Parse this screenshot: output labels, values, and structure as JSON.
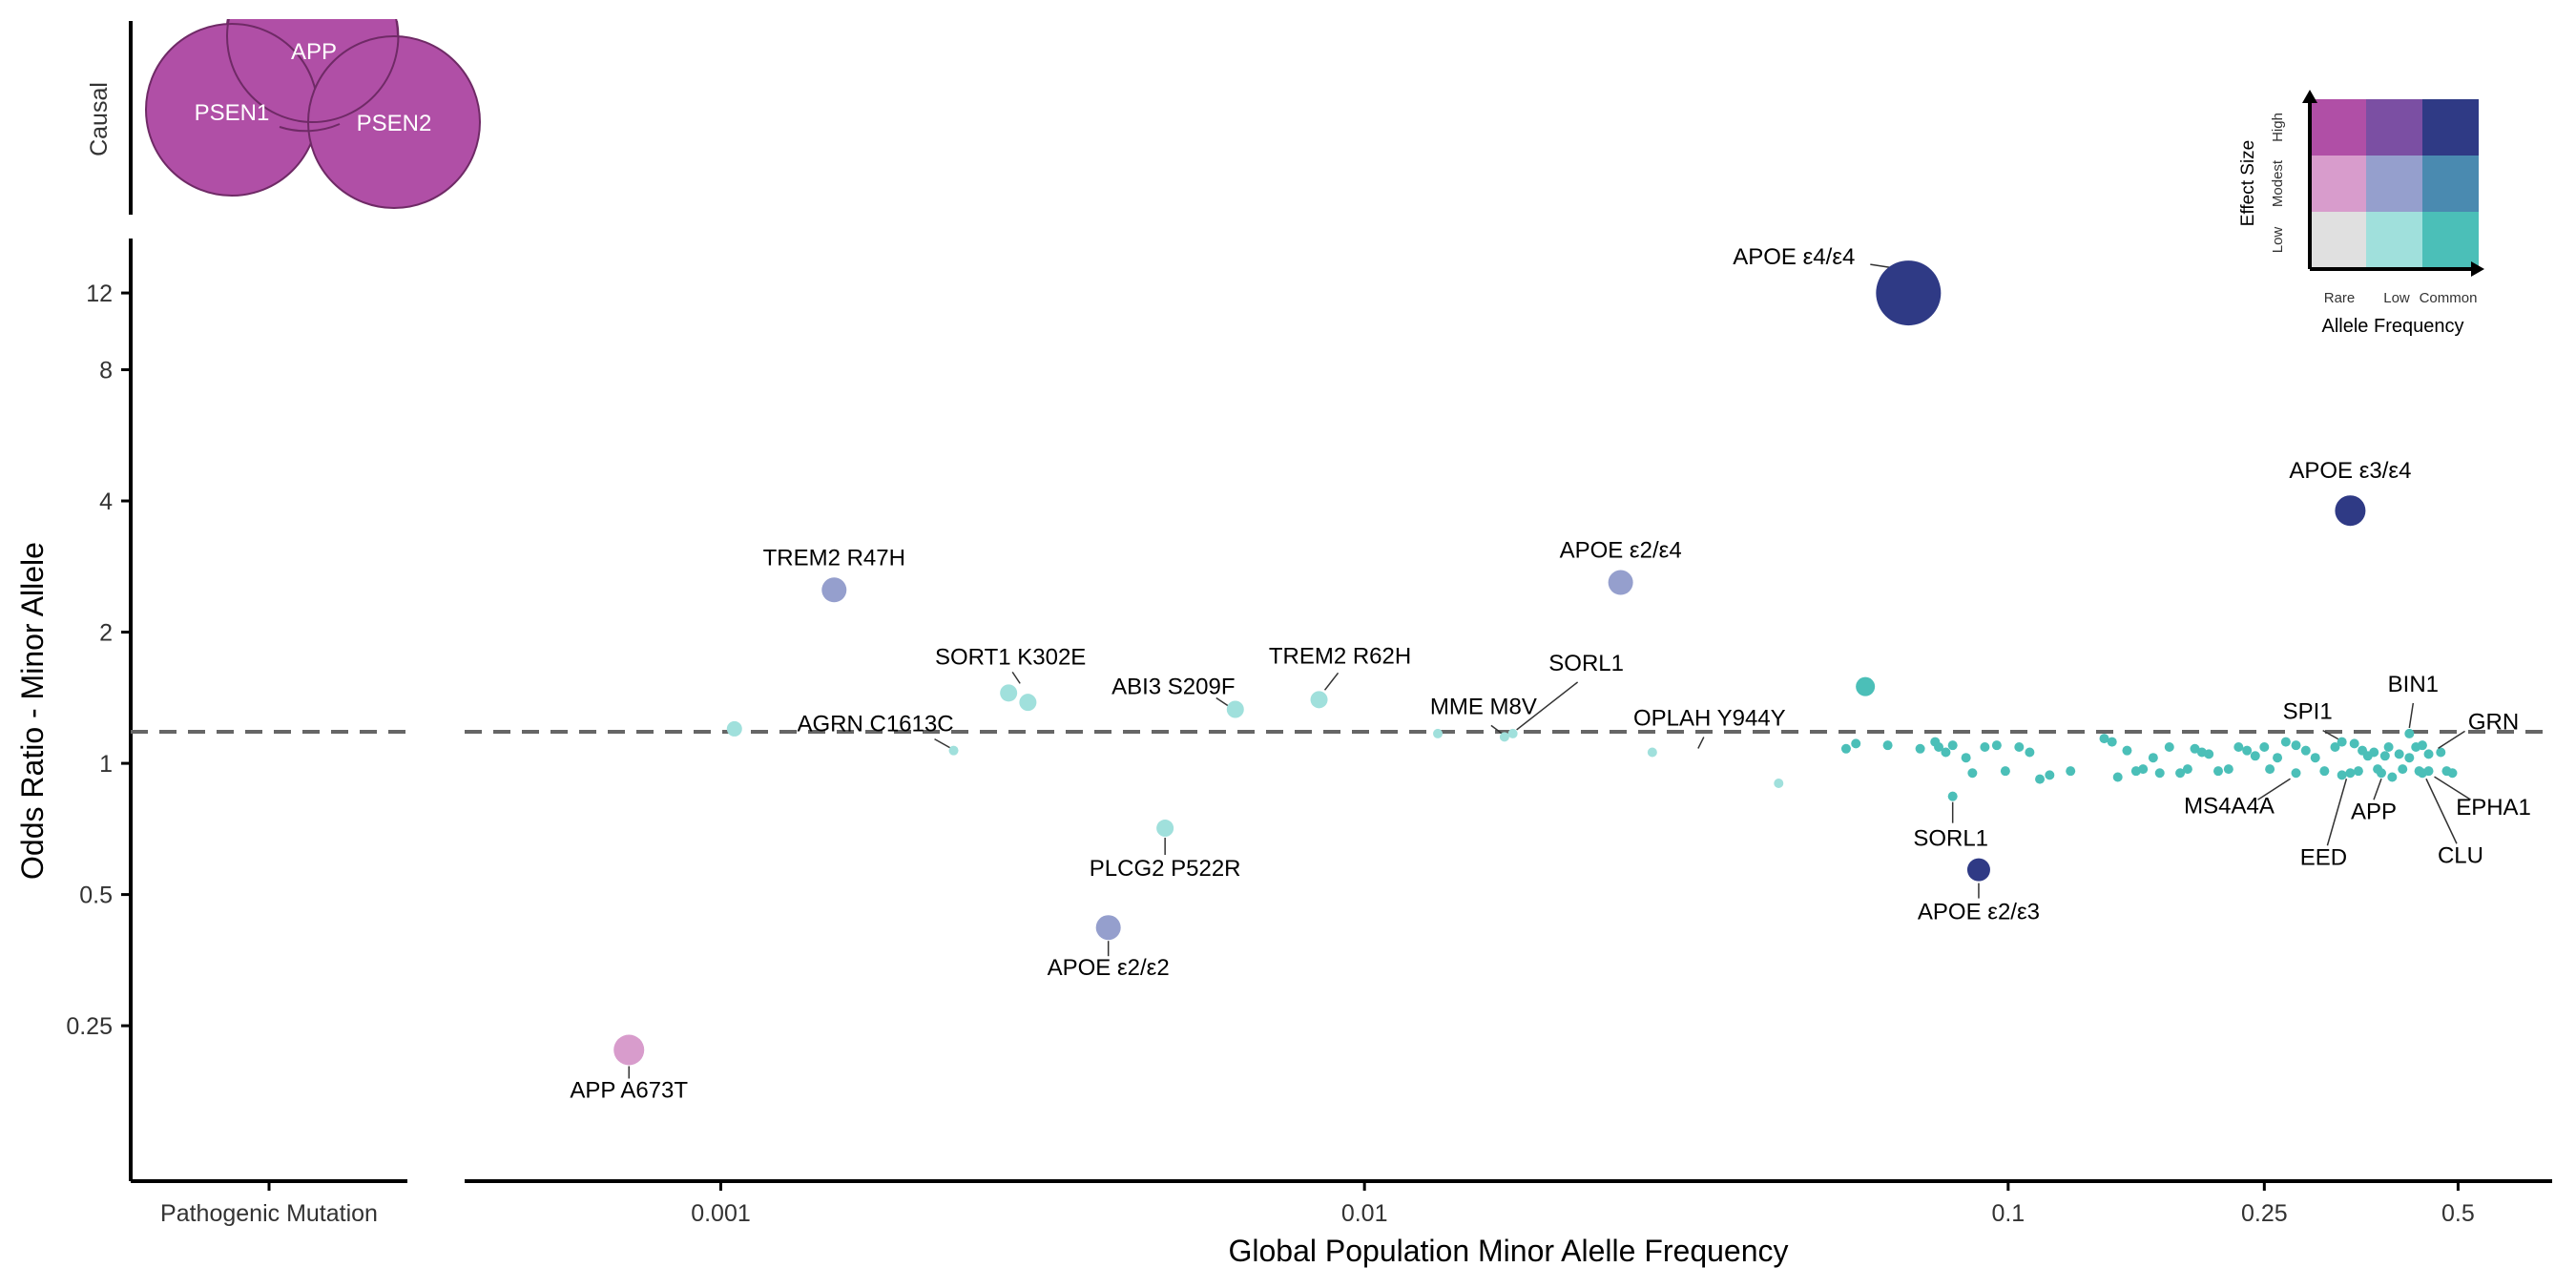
{
  "chart_data": {
    "type": "scatter",
    "title": "",
    "xlabel": "Global Population Minor Alelle Frequency",
    "ylabel": "Odds Ratio - Minor Allele",
    "x_scale": "log10",
    "y_scale": "log2",
    "xlim": [
      0.0004,
      0.7
    ],
    "ylim": [
      0.11,
      16
    ],
    "x_ticks": [
      {
        "value": 0.001,
        "label": "0.001"
      },
      {
        "value": 0.01,
        "label": "0.01"
      },
      {
        "value": 0.1,
        "label": "0.1"
      },
      {
        "value": 0.25,
        "label": "0.25"
      },
      {
        "value": 0.5,
        "label": "0.5"
      }
    ],
    "y_ticks": [
      {
        "value": 0.25,
        "label": "0.25"
      },
      {
        "value": 0.5,
        "label": "0.5"
      },
      {
        "value": 1,
        "label": "1"
      },
      {
        "value": 2,
        "label": "2"
      },
      {
        "value": 4,
        "label": "4"
      },
      {
        "value": 8,
        "label": "8"
      },
      {
        "value": 12,
        "label": "12"
      }
    ],
    "reference_line": {
      "y": 1,
      "style": "dashed"
    },
    "grid": false,
    "colors": {
      "rare_low": "#e0e0e0",
      "low_low": "#a0e0dc",
      "common_low": "#4bbfb8",
      "rare_modest": "#d89ccc",
      "low_modest": "#959fcd",
      "common_modest": "#4a8ab0",
      "rare_high": "#b04fa6",
      "low_high": "#7b4fa3",
      "common_high": "#2f3a85"
    },
    "points": [
      {
        "label": "APOE ε4/ε4",
        "x": 0.07,
        "y": 12,
        "size": 34,
        "color": "#2f3a85",
        "lx": -120,
        "ly": -30,
        "anchor": "middle",
        "line": [
          -40,
          -30,
          -14,
          -26
        ]
      },
      {
        "label": "APOE ε3/ε4",
        "x": 0.34,
        "y": 3.8,
        "size": 16,
        "color": "#2f3a85",
        "lx": 0,
        "ly": -34,
        "anchor": "middle"
      },
      {
        "label": "APOE ε2/ε4",
        "x": 0.025,
        "y": 2.6,
        "size": 13,
        "color": "#959fcd",
        "lx": 0,
        "ly": -26,
        "anchor": "middle"
      },
      {
        "label": "TREM2 R47H",
        "x": 0.0015,
        "y": 2.5,
        "size": 13,
        "color": "#959fcd",
        "lx": 0,
        "ly": -26,
        "anchor": "middle"
      },
      {
        "label": "SORT1 K302E",
        "x": 0.0028,
        "y": 1.45,
        "size": 9,
        "color": "#a0e0dc",
        "lx": 2,
        "ly": -30,
        "anchor": "middle",
        "line": [
          4,
          -22,
          12,
          -10
        ]
      },
      {
        "label": "",
        "x": 0.003,
        "y": 1.38,
        "size": 9,
        "color": "#a0e0dc"
      },
      {
        "label": "ABI3 S209F",
        "x": 0.0063,
        "y": 1.33,
        "size": 9,
        "color": "#a0e0dc",
        "lx": -65,
        "ly": -16,
        "anchor": "middle",
        "line": [
          -20,
          -12,
          -8,
          -4
        ]
      },
      {
        "label": "TREM2 R62H",
        "x": 0.0085,
        "y": 1.4,
        "size": 9,
        "color": "#a0e0dc",
        "lx": 22,
        "ly": -38,
        "anchor": "middle",
        "line": [
          20,
          -28,
          6,
          -10
        ]
      },
      {
        "label": "",
        "x": 0.00105,
        "y": 1.2,
        "size": 8,
        "color": "#a0e0dc"
      },
      {
        "label": "AGRN C1613C",
        "x": 0.0023,
        "y": 1.07,
        "size": 5,
        "color": "#a0e0dc",
        "lx": -82,
        "ly": -20,
        "anchor": "middle",
        "line": [
          -20,
          -12,
          -4,
          -3
        ]
      },
      {
        "label": "PLCG2 P522R",
        "x": 0.0049,
        "y": 0.71,
        "size": 9,
        "color": "#a0e0dc",
        "lx": 0,
        "ly": 50,
        "anchor": "middle",
        "line": [
          0,
          10,
          0,
          28
        ]
      },
      {
        "label": "APOE ε2/ε2",
        "x": 0.004,
        "y": 0.42,
        "size": 13,
        "color": "#959fcd",
        "lx": 0,
        "ly": 50,
        "anchor": "middle",
        "line": [
          0,
          14,
          0,
          30
        ]
      },
      {
        "label": "APP A673T",
        "x": 0.00072,
        "y": 0.22,
        "size": 16,
        "color": "#d89ccc",
        "lx": 0,
        "ly": 50,
        "anchor": "middle",
        "line": [
          0,
          17,
          0,
          30
        ]
      },
      {
        "label": "",
        "x": 0.013,
        "y": 1.17,
        "size": 5,
        "color": "#a0e0dc"
      },
      {
        "label": "MME M8V",
        "x": 0.0165,
        "y": 1.15,
        "size": 5,
        "color": "#a0e0dc",
        "lx": -22,
        "ly": -24,
        "anchor": "middle",
        "line": [
          -14,
          -12,
          -2,
          -3
        ]
      },
      {
        "label": "SORL1",
        "x": 0.017,
        "y": 1.17,
        "size": 5,
        "color": "#a0e0dc",
        "lx": 77,
        "ly": -66,
        "anchor": "middle",
        "line": [
          68,
          -54,
          4,
          -4
        ]
      },
      {
        "label": "OPLAH Y944Y",
        "x": 0.028,
        "y": 1.06,
        "size": 5,
        "color": "#a0e0dc",
        "lx": 60,
        "ly": -28,
        "anchor": "middle",
        "line": [
          54,
          -16,
          48,
          -4
        ]
      },
      {
        "label": "",
        "x": 0.044,
        "y": 0.9,
        "size": 5,
        "color": "#a0e0dc"
      },
      {
        "label": "",
        "x": 0.06,
        "y": 1.5,
        "size": 10,
        "color": "#4bbfb8"
      },
      {
        "label": "SORL1",
        "x": 0.082,
        "y": 0.84,
        "size": 5,
        "color": "#4bbfb8",
        "lx": -2,
        "ly": 52,
        "anchor": "middle",
        "line": [
          0,
          6,
          0,
          28
        ]
      },
      {
        "label": "APOE ε2/ε3",
        "x": 0.09,
        "y": 0.57,
        "size": 12,
        "color": "#2f3a85",
        "lx": 0,
        "ly": 52,
        "anchor": "middle",
        "line": [
          0,
          14,
          0,
          30
        ]
      },
      {
        "label": "BIN1",
        "x": 0.42,
        "y": 1.17,
        "size": 5,
        "color": "#4bbfb8",
        "lx": 4,
        "ly": -44,
        "anchor": "middle",
        "line": [
          4,
          -32,
          0,
          -6
        ]
      },
      {
        "label": "SPI1",
        "x": 0.33,
        "y": 1.12,
        "size": 5,
        "color": "#4bbfb8",
        "lx": -36,
        "ly": -24,
        "anchor": "middle",
        "line": [
          -20,
          -12,
          -4,
          -3
        ]
      },
      {
        "label": "GRN",
        "x": 0.45,
        "y": 1.05,
        "size": 5,
        "color": "#4bbfb8",
        "lx": 68,
        "ly": -26,
        "anchor": "middle",
        "line": [
          38,
          -24,
          10,
          -6
        ]
      },
      {
        "label": "MS4A4A",
        "x": 0.28,
        "y": 0.95,
        "size": 5,
        "color": "#4bbfb8",
        "lx": -70,
        "ly": 42,
        "anchor": "middle",
        "line": [
          -40,
          28,
          -6,
          6
        ]
      },
      {
        "label": "APP",
        "x": 0.38,
        "y": 0.95,
        "size": 5,
        "color": "#4bbfb8",
        "lx": -8,
        "ly": 48,
        "anchor": "middle",
        "line": [
          -8,
          28,
          0,
          6
        ]
      },
      {
        "label": "EED",
        "x": 0.34,
        "y": 0.95,
        "size": 5,
        "color": "#4bbfb8",
        "lx": -28,
        "ly": 96,
        "anchor": "middle",
        "line": [
          -24,
          76,
          -4,
          6
        ]
      },
      {
        "label": "EPHA1",
        "x": 0.45,
        "y": 0.96,
        "size": 5,
        "color": "#4bbfb8",
        "lx": 68,
        "ly": 46,
        "anchor": "middle",
        "line": [
          44,
          30,
          6,
          6
        ]
      },
      {
        "label": "CLU",
        "x": 0.44,
        "y": 0.95,
        "size": 5,
        "color": "#4bbfb8",
        "lx": 40,
        "ly": 94,
        "anchor": "middle",
        "line": [
          36,
          74,
          4,
          6
        ]
      }
    ],
    "background_points": {
      "color": "#4bbfb8",
      "size": 5,
      "xy": [
        [
          0.056,
          1.08
        ],
        [
          0.058,
          1.11
        ],
        [
          0.065,
          1.1
        ],
        [
          0.073,
          1.08
        ],
        [
          0.077,
          1.12
        ],
        [
          0.078,
          1.09
        ],
        [
          0.08,
          1.06
        ],
        [
          0.082,
          1.1
        ],
        [
          0.086,
          1.03
        ],
        [
          0.088,
          0.95
        ],
        [
          0.092,
          1.09
        ],
        [
          0.096,
          1.1
        ],
        [
          0.099,
          0.96
        ],
        [
          0.104,
          1.09
        ],
        [
          0.108,
          1.06
        ],
        [
          0.112,
          0.92
        ],
        [
          0.116,
          0.94
        ],
        [
          0.125,
          0.96
        ],
        [
          0.141,
          1.14
        ],
        [
          0.145,
          1.12
        ],
        [
          0.148,
          0.93
        ],
        [
          0.153,
          1.07
        ],
        [
          0.158,
          0.96
        ],
        [
          0.162,
          0.97
        ],
        [
          0.168,
          1.03
        ],
        [
          0.172,
          0.95
        ],
        [
          0.178,
          1.09
        ],
        [
          0.185,
          0.95
        ],
        [
          0.19,
          0.97
        ],
        [
          0.195,
          1.08
        ],
        [
          0.2,
          1.06
        ],
        [
          0.205,
          1.05
        ],
        [
          0.212,
          0.96
        ],
        [
          0.22,
          0.97
        ],
        [
          0.228,
          1.09
        ],
        [
          0.235,
          1.07
        ],
        [
          0.242,
          1.04
        ],
        [
          0.25,
          1.09
        ],
        [
          0.255,
          0.97
        ],
        [
          0.262,
          1.03
        ],
        [
          0.27,
          1.12
        ],
        [
          0.28,
          1.1
        ],
        [
          0.29,
          1.07
        ],
        [
          0.3,
          1.03
        ],
        [
          0.31,
          0.96
        ],
        [
          0.322,
          1.09
        ],
        [
          0.33,
          0.94
        ],
        [
          0.345,
          1.11
        ],
        [
          0.35,
          0.96
        ],
        [
          0.355,
          1.07
        ],
        [
          0.362,
          1.04
        ],
        [
          0.37,
          1.06
        ],
        [
          0.375,
          0.97
        ],
        [
          0.385,
          1.04
        ],
        [
          0.39,
          1.09
        ],
        [
          0.395,
          0.93
        ],
        [
          0.405,
          1.05
        ],
        [
          0.41,
          0.97
        ],
        [
          0.42,
          1.03
        ],
        [
          0.43,
          1.09
        ],
        [
          0.435,
          0.96
        ],
        [
          0.44,
          1.1
        ],
        [
          0.47,
          1.06
        ],
        [
          0.48,
          0.96
        ],
        [
          0.49,
          0.95
        ]
      ]
    },
    "legend": {
      "placement": "top-right",
      "y_title": "Effect Size",
      "x_title": "Allele Frequency",
      "y_levels": [
        "Low",
        "Modest",
        "High"
      ],
      "x_levels": [
        "Rare",
        "Low",
        "Common"
      ],
      "grid_colors": [
        [
          "#b04fa6",
          "#7b4fa3",
          "#2f3a85"
        ],
        [
          "#d89ccc",
          "#959fcd",
          "#4a8ab0"
        ],
        [
          "#e0e0e0",
          "#a0e0dc",
          "#4bbfb8"
        ]
      ]
    },
    "causal_panel": {
      "label": "Causal",
      "genes": [
        "APP",
        "PSEN1",
        "PSEN2"
      ],
      "color": "#b04fa6"
    },
    "pathogenic_panel": {
      "x_tick_label": "Pathogenic Mutation"
    }
  }
}
